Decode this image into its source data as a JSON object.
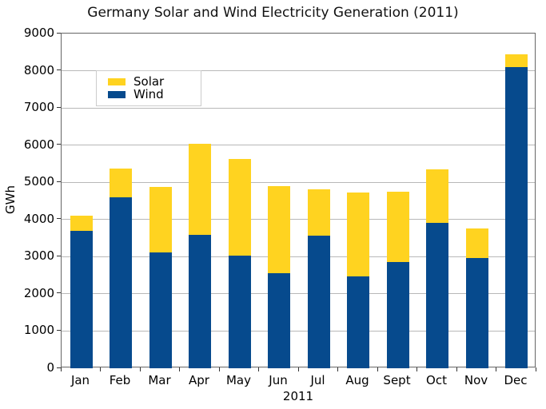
{
  "title": "Germany Solar and Wind Electricity Generation (2011)",
  "chart_data": {
    "type": "bar",
    "stacked": true,
    "title": "Germany Solar and Wind Electricity Generation (2011)",
    "xlabel": "2011",
    "ylabel": "GWh",
    "categories": [
      "Jan",
      "Feb",
      "Mar",
      "Apr",
      "May",
      "Jun",
      "Jul",
      "Aug",
      "Sept",
      "Oct",
      "Nov",
      "Dec"
    ],
    "series": [
      {
        "name": "Solar",
        "color": "#FFD320",
        "values": [
          406,
          768,
          1756,
          2448,
          2609,
          2355,
          1243,
          2249,
          1879,
          1442,
          807,
          341
        ]
      },
      {
        "name": "Wind",
        "color": "#064A8D",
        "values": [
          3696,
          4598,
          3119,
          3583,
          3022,
          2548,
          3576,
          2475,
          2866,
          3901,
          2957,
          8107
        ]
      }
    ],
    "stack_order_bottom_to_top": [
      "Wind",
      "Solar"
    ],
    "ylim": [
      0,
      9000
    ],
    "ytick_step": 1000,
    "grid": true,
    "gridline_color": "#b8b8b8",
    "frame_color": "#666666",
    "legend_position": "upper-left-inside",
    "legend_items": [
      {
        "label": "Solar",
        "color": "#FFD320"
      },
      {
        "label": "Wind",
        "color": "#064A8D"
      }
    ]
  }
}
